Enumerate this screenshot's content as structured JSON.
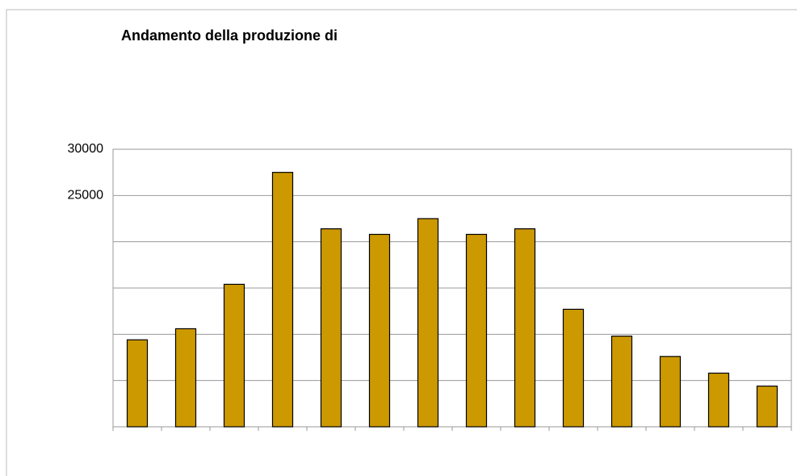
{
  "chart_data": {
    "type": "bar",
    "title": "Andamento della produzione di",
    "categories": [
      null,
      null,
      null,
      null,
      null,
      null,
      null,
      null,
      null,
      null,
      null,
      null,
      null,
      null
    ],
    "values": [
      9400,
      10600,
      15400,
      27500,
      21400,
      20800,
      22500,
      20800,
      21400,
      12700,
      9800,
      7600,
      5800,
      4400
    ],
    "color": "#cc9900",
    "ylim": [
      0,
      30000
    ],
    "yticks": [
      {
        "value": 0
      },
      {
        "value": 5000
      },
      {
        "value": 10000
      },
      {
        "value": 15000
      },
      {
        "value": 20000
      },
      25000,
      30000
    ],
    "grid": true
  }
}
